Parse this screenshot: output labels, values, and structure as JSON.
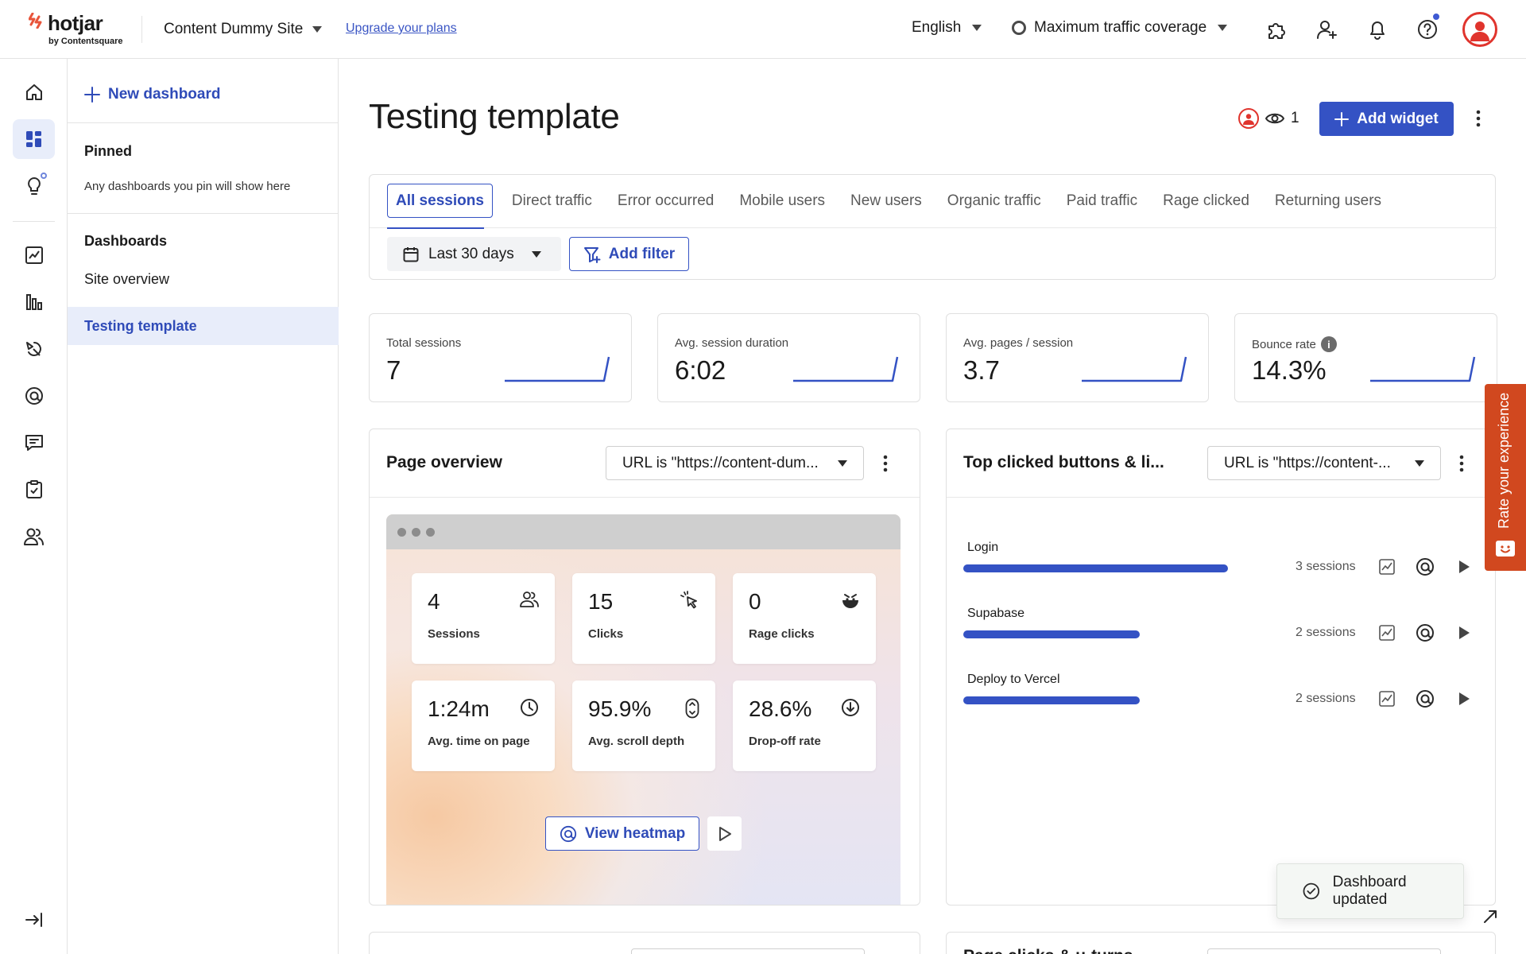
{
  "topbar": {
    "logo_text": "hotjar",
    "logo_sub": "by Contentsquare",
    "site_name": "Content Dummy Site",
    "upgrade_link": "Upgrade your plans",
    "language": "English",
    "traffic_coverage": "Maximum traffic coverage",
    "icons": [
      "integrations-icon",
      "invite-user-icon",
      "bell-icon",
      "help-icon",
      "user-avatar"
    ]
  },
  "rail": {
    "items": [
      "home-icon",
      "dashboards-icon",
      "insights-icon",
      "trends-icon",
      "funnels-icon",
      "recordings-icon",
      "heatmaps-icon",
      "feedback-icon",
      "surveys-icon",
      "interviews-icon",
      "collapse-icon"
    ]
  },
  "panel": {
    "new_dashboard": "New dashboard",
    "pinned_heading": "Pinned",
    "pinned_note": "Any dashboards you pin will show here",
    "dashboards_heading": "Dashboards",
    "dashboards": [
      {
        "label": "Site overview",
        "active": false
      },
      {
        "label": "Testing template",
        "active": true
      }
    ]
  },
  "main": {
    "title": "Testing template",
    "viewer_count": "1",
    "add_widget": "Add widget",
    "tabs": [
      "All sessions",
      "Direct traffic",
      "Error occurred",
      "Mobile users",
      "New users",
      "Organic traffic",
      "Paid traffic",
      "Rage clicked",
      "Returning users"
    ],
    "active_tab": "All sessions",
    "date_range": "Last 30 days",
    "add_filter": "Add filter",
    "stats": [
      {
        "label": "Total sessions",
        "value": "7",
        "info": false
      },
      {
        "label": "Avg. session duration",
        "value": "6:02",
        "info": false
      },
      {
        "label": "Avg. pages / session",
        "value": "3.7",
        "info": false
      },
      {
        "label": "Bounce rate",
        "value": "14.3%",
        "info": true
      }
    ],
    "accent_color": "#3452c4"
  },
  "page_overview": {
    "title": "Page overview",
    "url_filter": "URL is \"https://content-dum...",
    "metrics": [
      {
        "value": "4",
        "label": "Sessions",
        "icon": "users-icon"
      },
      {
        "value": "15",
        "label": "Clicks",
        "icon": "click-icon"
      },
      {
        "value": "0",
        "label": "Rage clicks",
        "icon": "angry-face-icon"
      },
      {
        "value": "1:24m",
        "label": "Avg. time on page",
        "icon": "clock-icon"
      },
      {
        "value": "95.9%",
        "label": "Avg. scroll depth",
        "icon": "scroll-icon"
      },
      {
        "value": "28.6%",
        "label": "Drop-off rate",
        "icon": "drop-off-icon"
      }
    ],
    "view_heatmap": "View heatmap"
  },
  "top_clicked": {
    "title": "Top clicked buttons & li...",
    "url_filter": "URL is \"https://content-...",
    "rows": [
      {
        "label": "Login",
        "sessions": "3 sessions",
        "share": 1.0
      },
      {
        "label": "Supabase",
        "sessions": "2 sessions",
        "share": 0.667
      },
      {
        "label": "Deploy to Vercel",
        "sessions": "2 sessions",
        "share": 0.667
      }
    ]
  },
  "next_row": {
    "right_title": "Page clicks & u-turns"
  },
  "feedback_tab": "Rate your experience",
  "toast": "Dashboard updated"
}
